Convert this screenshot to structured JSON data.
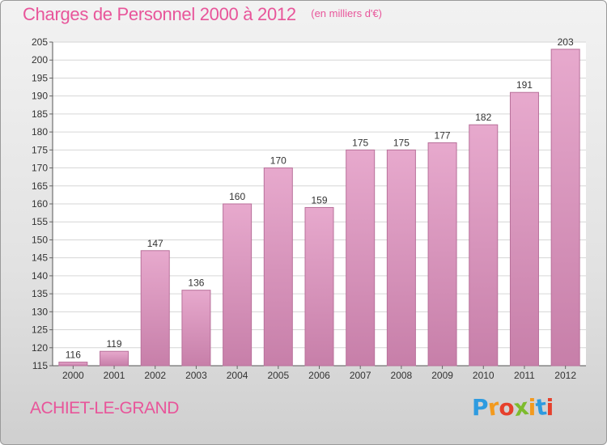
{
  "header": {
    "title": "Charges de Personnel 2000 à 2012",
    "subtitle": "(en milliers d'€)"
  },
  "footer": {
    "commune": "ACHIET-LE-GRAND"
  },
  "logo": {
    "letters": [
      "P",
      "r",
      "o",
      "x",
      "i",
      "t",
      "i"
    ],
    "colors": [
      "#2e9be0",
      "#f39a1e",
      "#e6402c",
      "#7dbb2d",
      "#f39a1e",
      "#2e9be0",
      "#e6402c"
    ]
  },
  "colors": {
    "bar_top": "#e7a9cd",
    "bar_bottom": "#c77fa9",
    "bar_stroke": "#b8709a",
    "text_accent": "#e8559a"
  },
  "chart_data": {
    "type": "bar",
    "title": "Charges de Personnel 2000 à 2012",
    "subtitle": "(en milliers d'€)",
    "categories": [
      "2000",
      "2001",
      "2002",
      "2003",
      "2004",
      "2005",
      "2006",
      "2007",
      "2008",
      "2009",
      "2010",
      "2011",
      "2012"
    ],
    "values": [
      116,
      119,
      147,
      136,
      160,
      170,
      159,
      175,
      175,
      177,
      182,
      191,
      203
    ],
    "data_labels": [
      "116",
      "119",
      "147",
      "136",
      "160",
      "170",
      "159",
      "175",
      "175",
      "177",
      "182",
      "191",
      "203"
    ],
    "ylim": [
      115,
      205
    ],
    "yticks": [
      115,
      120,
      125,
      130,
      135,
      140,
      145,
      150,
      155,
      160,
      165,
      170,
      175,
      180,
      185,
      190,
      195,
      200,
      205
    ],
    "grid": true
  }
}
